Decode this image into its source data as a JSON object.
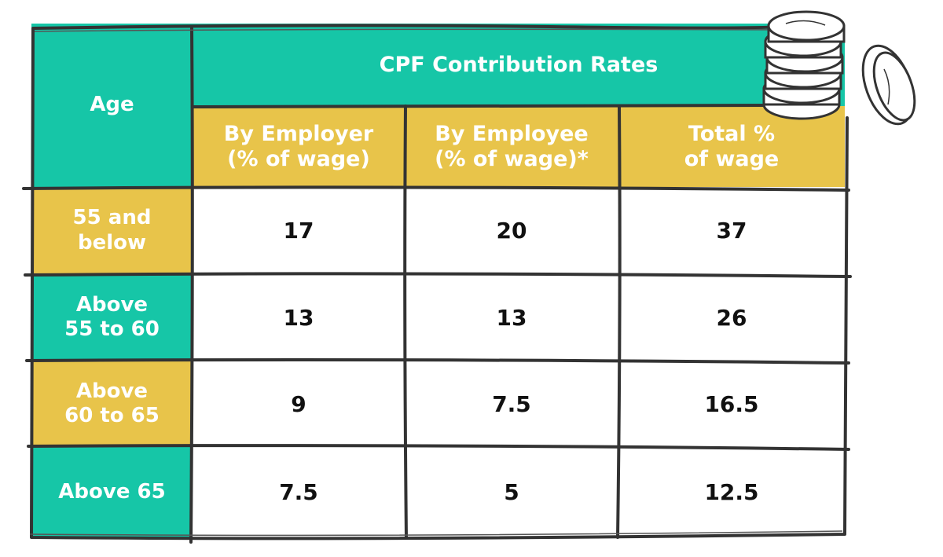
{
  "table": {
    "age_header": "Age",
    "group_header": "CPF Contribution Rates",
    "column_headers": [
      "By Employer\n(% of wage)",
      "By Employee\n(% of wage)*",
      "Total %\nof wage"
    ],
    "rows": [
      {
        "age": "55 and\nbelow",
        "employer": "17",
        "employee": "20",
        "total": "37"
      },
      {
        "age": "Above\n55 to 60",
        "employer": "13",
        "employee": "13",
        "total": "26"
      },
      {
        "age": "Above\n60 to 65",
        "employer": "9",
        "employee": "7.5",
        "total": "16.5"
      },
      {
        "age": "Above 65",
        "employer": "7.5",
        "employee": "5",
        "total": "12.5"
      }
    ]
  },
  "colors": {
    "teal": "#16c6a7",
    "yellow": "#e8c44a",
    "border": "#333333"
  },
  "decoration": {
    "icon": "coin-stack-icon"
  }
}
